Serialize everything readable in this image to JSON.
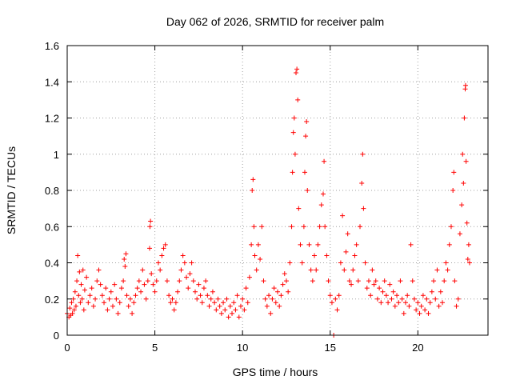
{
  "chart_data": {
    "type": "scatter",
    "title": "Day 062 of 2026, SRMTID for receiver palm",
    "xlabel": "GPS time / hours",
    "ylabel": "SRMTID / TECUs",
    "xlim": [
      0,
      24
    ],
    "ylim": [
      0,
      1.6
    ],
    "xticks": [
      0,
      5,
      10,
      15,
      20
    ],
    "xtick_labels": [
      "0",
      "5",
      "10",
      "15",
      "20"
    ],
    "yticks": [
      0,
      0.2,
      0.4,
      0.6,
      0.8,
      1.0,
      1.2,
      1.4,
      1.6
    ],
    "ytick_labels": [
      "0",
      "0.2",
      "0.4",
      "0.6",
      "0.8",
      "1",
      "1.2",
      "1.4",
      "1.6"
    ],
    "grid": true,
    "marker": "+",
    "color": "#ff0000",
    "series": [
      {
        "name": "SRMTID",
        "points": [
          [
            0.0,
            0.12
          ],
          [
            0.1,
            0.1
          ],
          [
            0.15,
            0.15
          ],
          [
            0.2,
            0.11
          ],
          [
            0.25,
            0.18
          ],
          [
            0.3,
            0.12
          ],
          [
            0.35,
            0.2
          ],
          [
            0.4,
            0.14
          ],
          [
            0.45,
            0.24
          ],
          [
            0.5,
            0.16
          ],
          [
            0.55,
            0.3
          ],
          [
            0.6,
            0.44
          ],
          [
            0.65,
            0.22
          ],
          [
            0.7,
            0.35
          ],
          [
            0.75,
            0.18
          ],
          [
            0.8,
            0.28
          ],
          [
            0.85,
            0.2
          ],
          [
            0.9,
            0.36
          ],
          [
            0.95,
            0.14
          ],
          [
            1.0,
            0.25
          ],
          [
            1.1,
            0.32
          ],
          [
            1.2,
            0.18
          ],
          [
            1.3,
            0.22
          ],
          [
            1.4,
            0.26
          ],
          [
            1.5,
            0.16
          ],
          [
            1.6,
            0.2
          ],
          [
            1.7,
            0.3
          ],
          [
            1.8,
            0.36
          ],
          [
            1.9,
            0.28
          ],
          [
            2.0,
            0.22
          ],
          [
            2.1,
            0.18
          ],
          [
            2.2,
            0.26
          ],
          [
            2.3,
            0.14
          ],
          [
            2.4,
            0.2
          ],
          [
            2.5,
            0.24
          ],
          [
            2.6,
            0.16
          ],
          [
            2.7,
            0.28
          ],
          [
            2.8,
            0.2
          ],
          [
            2.9,
            0.12
          ],
          [
            3.0,
            0.18
          ],
          [
            3.1,
            0.26
          ],
          [
            3.2,
            0.3
          ],
          [
            3.25,
            0.42
          ],
          [
            3.3,
            0.38
          ],
          [
            3.35,
            0.45
          ],
          [
            3.4,
            0.22
          ],
          [
            3.5,
            0.16
          ],
          [
            3.6,
            0.2
          ],
          [
            3.7,
            0.12
          ],
          [
            3.8,
            0.18
          ],
          [
            3.9,
            0.22
          ],
          [
            4.0,
            0.26
          ],
          [
            4.1,
            0.3
          ],
          [
            4.2,
            0.24
          ],
          [
            4.3,
            0.36
          ],
          [
            4.4,
            0.28
          ],
          [
            4.5,
            0.2
          ],
          [
            4.6,
            0.3
          ],
          [
            4.7,
            0.48
          ],
          [
            4.72,
            0.6
          ],
          [
            4.75,
            0.63
          ],
          [
            4.8,
            0.34
          ],
          [
            4.9,
            0.28
          ],
          [
            5.0,
            0.24
          ],
          [
            5.1,
            0.3
          ],
          [
            5.2,
            0.4
          ],
          [
            5.3,
            0.36
          ],
          [
            5.4,
            0.44
          ],
          [
            5.5,
            0.48
          ],
          [
            5.6,
            0.5
          ],
          [
            5.7,
            0.3
          ],
          [
            5.8,
            0.22
          ],
          [
            5.9,
            0.18
          ],
          [
            6.0,
            0.2
          ],
          [
            6.1,
            0.14
          ],
          [
            6.2,
            0.18
          ],
          [
            6.3,
            0.24
          ],
          [
            6.4,
            0.3
          ],
          [
            6.5,
            0.36
          ],
          [
            6.6,
            0.44
          ],
          [
            6.7,
            0.4
          ],
          [
            6.8,
            0.32
          ],
          [
            6.9,
            0.26
          ],
          [
            7.0,
            0.34
          ],
          [
            7.1,
            0.4
          ],
          [
            7.2,
            0.3
          ],
          [
            7.3,
            0.24
          ],
          [
            7.4,
            0.2
          ],
          [
            7.5,
            0.28
          ],
          [
            7.6,
            0.22
          ],
          [
            7.7,
            0.18
          ],
          [
            7.8,
            0.26
          ],
          [
            7.9,
            0.3
          ],
          [
            8.0,
            0.22
          ],
          [
            8.1,
            0.16
          ],
          [
            8.2,
            0.2
          ],
          [
            8.3,
            0.24
          ],
          [
            8.4,
            0.18
          ],
          [
            8.5,
            0.14
          ],
          [
            8.6,
            0.2
          ],
          [
            8.7,
            0.16
          ],
          [
            8.8,
            0.12
          ],
          [
            8.9,
            0.18
          ],
          [
            9.0,
            0.14
          ],
          [
            9.1,
            0.2
          ],
          [
            9.2,
            0.1
          ],
          [
            9.3,
            0.16
          ],
          [
            9.4,
            0.12
          ],
          [
            9.5,
            0.18
          ],
          [
            9.6,
            0.14
          ],
          [
            9.7,
            0.22
          ],
          [
            9.8,
            0.1
          ],
          [
            9.9,
            0.16
          ],
          [
            10.0,
            0.2
          ],
          [
            10.1,
            0.14
          ],
          [
            10.2,
            0.26
          ],
          [
            10.3,
            0.18
          ],
          [
            10.4,
            0.32
          ],
          [
            10.5,
            0.5
          ],
          [
            10.55,
            0.8
          ],
          [
            10.6,
            0.86
          ],
          [
            10.65,
            0.6
          ],
          [
            10.7,
            0.44
          ],
          [
            10.8,
            0.36
          ],
          [
            10.9,
            0.5
          ],
          [
            11.0,
            0.42
          ],
          [
            11.1,
            0.6
          ],
          [
            11.2,
            0.3
          ],
          [
            11.3,
            0.2
          ],
          [
            11.4,
            0.16
          ],
          [
            11.5,
            0.22
          ],
          [
            11.6,
            0.12
          ],
          [
            11.7,
            0.2
          ],
          [
            11.8,
            0.26
          ],
          [
            11.9,
            0.18
          ],
          [
            12.0,
            0.24
          ],
          [
            12.1,
            0.16
          ],
          [
            12.2,
            0.22
          ],
          [
            12.3,
            0.28
          ],
          [
            12.4,
            0.34
          ],
          [
            12.5,
            0.3
          ],
          [
            12.6,
            0.24
          ],
          [
            12.7,
            0.4
          ],
          [
            12.8,
            0.6
          ],
          [
            12.85,
            0.9
          ],
          [
            12.9,
            1.12
          ],
          [
            12.95,
            1.2
          ],
          [
            13.0,
            1.0
          ],
          [
            13.05,
            1.45
          ],
          [
            13.1,
            1.47
          ],
          [
            13.15,
            1.3
          ],
          [
            13.2,
            0.7
          ],
          [
            13.3,
            0.5
          ],
          [
            13.4,
            0.4
          ],
          [
            13.5,
            0.6
          ],
          [
            13.55,
            0.9
          ],
          [
            13.6,
            1.1
          ],
          [
            13.65,
            1.18
          ],
          [
            13.7,
            0.8
          ],
          [
            13.8,
            0.5
          ],
          [
            13.9,
            0.36
          ],
          [
            14.0,
            0.3
          ],
          [
            14.1,
            0.44
          ],
          [
            14.2,
            0.36
          ],
          [
            14.3,
            0.5
          ],
          [
            14.4,
            0.6
          ],
          [
            14.5,
            0.72
          ],
          [
            14.6,
            0.78
          ],
          [
            14.65,
            0.96
          ],
          [
            14.7,
            0.6
          ],
          [
            14.8,
            0.44
          ],
          [
            14.9,
            0.3
          ],
          [
            15.0,
            0.22
          ],
          [
            15.1,
            0.18
          ],
          [
            15.2,
            0.0
          ],
          [
            15.3,
            0.2
          ],
          [
            15.4,
            0.14
          ],
          [
            15.5,
            0.22
          ],
          [
            15.6,
            0.4
          ],
          [
            15.7,
            0.66
          ],
          [
            15.8,
            0.36
          ],
          [
            15.9,
            0.46
          ],
          [
            16.0,
            0.56
          ],
          [
            16.1,
            0.3
          ],
          [
            16.2,
            0.28
          ],
          [
            16.3,
            0.36
          ],
          [
            16.4,
            0.44
          ],
          [
            16.5,
            0.5
          ],
          [
            16.6,
            0.3
          ],
          [
            16.7,
            0.6
          ],
          [
            16.8,
            0.84
          ],
          [
            16.85,
            1.0
          ],
          [
            16.9,
            0.7
          ],
          [
            17.0,
            0.4
          ],
          [
            17.1,
            0.26
          ],
          [
            17.2,
            0.3
          ],
          [
            17.3,
            0.22
          ],
          [
            17.4,
            0.36
          ],
          [
            17.5,
            0.28
          ],
          [
            17.6,
            0.3
          ],
          [
            17.7,
            0.2
          ],
          [
            17.8,
            0.26
          ],
          [
            17.9,
            0.18
          ],
          [
            18.0,
            0.24
          ],
          [
            18.1,
            0.3
          ],
          [
            18.2,
            0.22
          ],
          [
            18.3,
            0.18
          ],
          [
            18.4,
            0.28
          ],
          [
            18.5,
            0.2
          ],
          [
            18.6,
            0.24
          ],
          [
            18.7,
            0.16
          ],
          [
            18.8,
            0.22
          ],
          [
            18.9,
            0.18
          ],
          [
            19.0,
            0.3
          ],
          [
            19.1,
            0.2
          ],
          [
            19.2,
            0.12
          ],
          [
            19.3,
            0.18
          ],
          [
            19.4,
            0.22
          ],
          [
            19.5,
            0.16
          ],
          [
            19.6,
            0.5
          ],
          [
            19.7,
            0.3
          ],
          [
            19.8,
            0.2
          ],
          [
            19.9,
            0.14
          ],
          [
            20.0,
            0.18
          ],
          [
            20.1,
            0.12
          ],
          [
            20.2,
            0.16
          ],
          [
            20.3,
            0.22
          ],
          [
            20.4,
            0.14
          ],
          [
            20.5,
            0.2
          ],
          [
            20.6,
            0.12
          ],
          [
            20.7,
            0.18
          ],
          [
            20.8,
            0.24
          ],
          [
            20.9,
            0.3
          ],
          [
            21.0,
            0.2
          ],
          [
            21.1,
            0.36
          ],
          [
            21.2,
            0.16
          ],
          [
            21.3,
            0.24
          ],
          [
            21.4,
            0.18
          ],
          [
            21.5,
            0.3
          ],
          [
            21.6,
            0.4
          ],
          [
            21.7,
            0.36
          ],
          [
            21.8,
            0.5
          ],
          [
            21.9,
            0.6
          ],
          [
            22.0,
            0.8
          ],
          [
            22.05,
            0.9
          ],
          [
            22.1,
            0.3
          ],
          [
            22.2,
            0.16
          ],
          [
            22.3,
            0.2
          ],
          [
            22.4,
            0.56
          ],
          [
            22.5,
            0.72
          ],
          [
            22.55,
            1.0
          ],
          [
            22.6,
            0.84
          ],
          [
            22.65,
            1.2
          ],
          [
            22.7,
            1.36
          ],
          [
            22.72,
            1.38
          ],
          [
            22.75,
            0.96
          ],
          [
            22.8,
            0.62
          ],
          [
            22.85,
            0.42
          ],
          [
            22.9,
            0.5
          ],
          [
            22.95,
            0.4
          ]
        ]
      }
    ]
  }
}
